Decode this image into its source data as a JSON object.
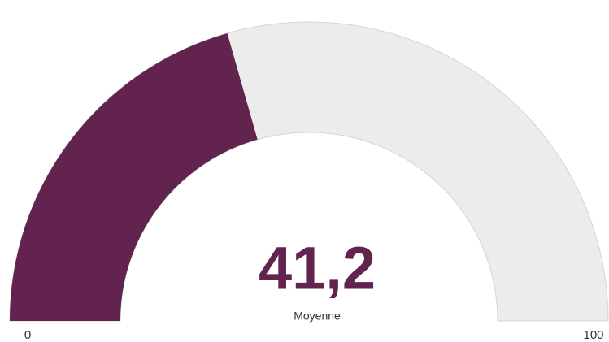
{
  "chart_data": {
    "type": "gauge",
    "values": [
      41.2
    ],
    "value_labels": [
      "41,2"
    ],
    "label": "Moyenne",
    "ylim": [
      0,
      100
    ],
    "yticks": [
      0,
      100
    ],
    "color": "#62244f",
    "track_color": "#ececec"
  }
}
